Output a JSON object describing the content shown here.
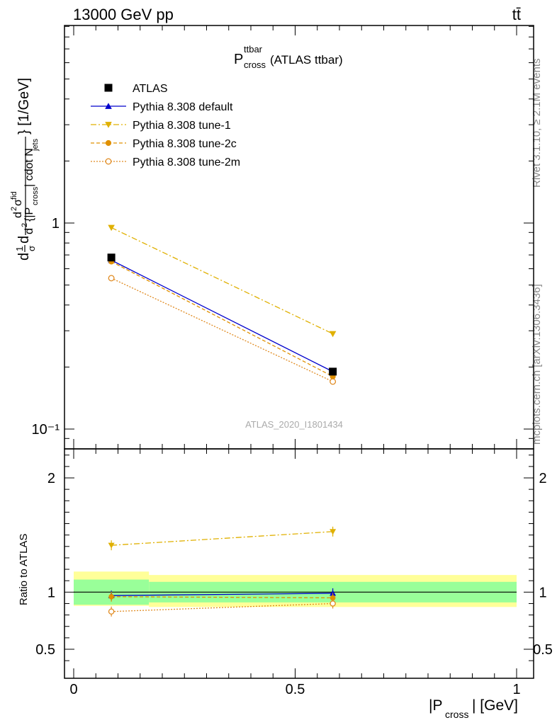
{
  "header": {
    "energy": "13000 GeV pp",
    "process": "tt̄"
  },
  "side": {
    "rivet": "Rivet 3.1.10, ≥ 2.1M events",
    "source": "mcplots.cern.ch [arXiv:1306.3436]"
  },
  "main": {
    "title_main": "P",
    "title_sup": "ttbar",
    "title_sub": "cross",
    "title_tail": " (ATLAS ttbar)",
    "analysis": "ATLAS_2020_I1801434",
    "ylabel": "d²σ/d²{|P_cross| cdot N_jets} [1/GeV] (1/σ normalized)"
  },
  "ratio": {
    "ylabel": "Ratio to ATLAS"
  },
  "xaxis": {
    "label_pre": "|P",
    "label_sub": "cross",
    "label_post": "| [GeV]"
  },
  "colors": {
    "data": "#000000",
    "default": "#0000cc",
    "tune1": "#e0b000",
    "tune2c": "#e09000",
    "tune2m": "#e08a20",
    "band_inner": "#99ff99",
    "band_outer": "#ffff99"
  },
  "chart_data": {
    "type": "scatter",
    "x_bins": [
      [
        0.0,
        0.17
      ],
      [
        0.17,
        1.0
      ]
    ],
    "x": [
      0.085,
      0.585
    ],
    "xlim": [
      0.0,
      1.0
    ],
    "xticks": [
      "0",
      "0.5",
      "1"
    ],
    "main_ylim": [
      0.08,
      7.0
    ],
    "main_yscale": "log",
    "main_yticks": [
      "10⁻¹",
      "1"
    ],
    "ratio_ylim": [
      0.4,
      2.3
    ],
    "ratio_yticks": [
      "0.5",
      "1",
      "2"
    ],
    "legend_position": "top-left",
    "series": [
      {
        "name": "ATLAS",
        "key": "data",
        "marker": "square",
        "dash": "",
        "values": [
          0.68,
          0.19
        ],
        "ratio": [
          1.0,
          1.0
        ]
      },
      {
        "name": "Pythia 8.308 default",
        "key": "default",
        "marker": "triangle-up",
        "dash": "",
        "values": [
          0.66,
          0.19
        ],
        "ratio": [
          0.97,
          0.99
        ]
      },
      {
        "name": "Pythia 8.308 tune-1",
        "key": "tune1",
        "marker": "triangle-down",
        "dash": "8,3,2,3",
        "values": [
          0.95,
          0.29
        ],
        "ratio": [
          1.41,
          1.53
        ]
      },
      {
        "name": "Pythia 8.308 tune-2c",
        "key": "tune2c",
        "marker": "circle",
        "dash": "5,3",
        "values": [
          0.65,
          0.18
        ],
        "ratio": [
          0.96,
          0.95
        ]
      },
      {
        "name": "Pythia 8.308 tune-2m",
        "key": "tune2m",
        "marker": "open-circle",
        "dash": "2,2",
        "values": [
          0.54,
          0.17
        ],
        "ratio": [
          0.83,
          0.9
        ]
      }
    ],
    "ratio_band": {
      "inner": [
        [
          0.89,
          1.11
        ],
        [
          0.91,
          1.09
        ]
      ],
      "outer": [
        [
          0.88,
          1.18
        ],
        [
          0.87,
          1.15
        ]
      ]
    }
  }
}
